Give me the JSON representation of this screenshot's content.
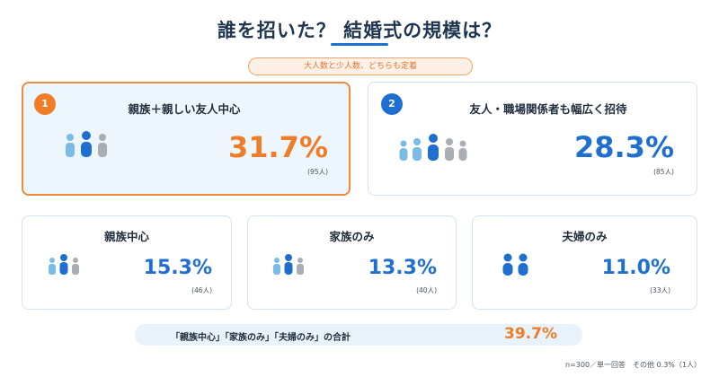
{
  "header": {
    "title": "誰を招いた？ 結婚式の規模は？",
    "subtitle": "大人数と少人数、どちらも定着"
  },
  "colors": {
    "orange": "#ef7d28",
    "blue": "#1f6fd1",
    "lightblue": "#7bbbe8",
    "gray": "#a9aeb5"
  },
  "chart_data": {
    "type": "table",
    "title": "誰を招いた？ 結婚式の規模は？",
    "unit": "%",
    "items": [
      {
        "rank": "1",
        "label": "親族＋親しい友人中心",
        "value": 31.7,
        "value_label": "31.7%",
        "count_label": "(95人)"
      },
      {
        "rank": "2",
        "label": "友人・職場関係者も幅広く招待",
        "value": 28.3,
        "value_label": "28.3%",
        "count_label": "(85人)"
      },
      {
        "rank": "",
        "label": "親族中心",
        "value": 15.3,
        "value_label": "15.3%",
        "count_label": "(46人)"
      },
      {
        "rank": "",
        "label": "家族のみ",
        "value": 13.3,
        "value_label": "13.3%",
        "count_label": "(40人)"
      },
      {
        "rank": "",
        "label": "夫婦のみ",
        "value": 11.0,
        "value_label": "11.0%",
        "count_label": "(33人)"
      }
    ],
    "summary": {
      "label": "「親族中心」「家族のみ」「夫婦のみ」の合計",
      "value": 39.7,
      "value_label": "39.7%"
    },
    "footnote": "n=300／単一回答　その他 0.3%（1人）"
  }
}
